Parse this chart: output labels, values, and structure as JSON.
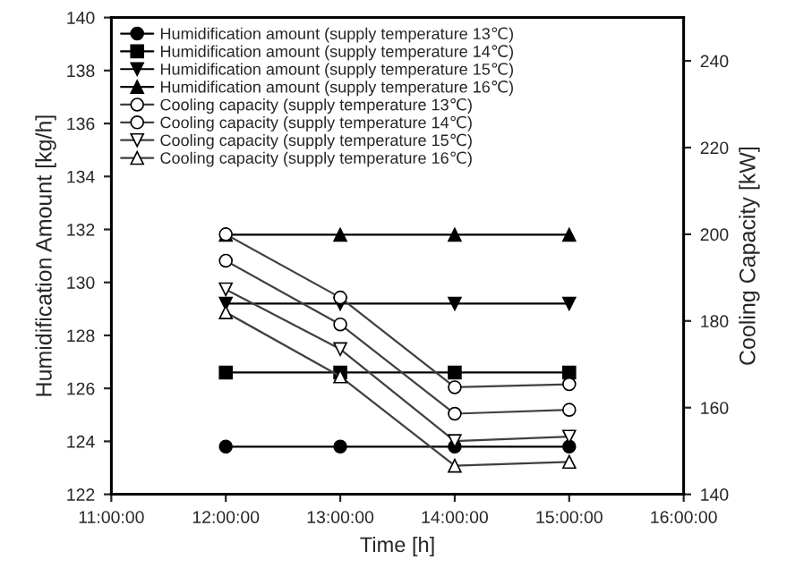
{
  "chart_data": {
    "type": "line",
    "xlabel": "Time [h]",
    "ylabel": "Humidification Amount [kg/h]",
    "y2label": "Cooling Capacity [kW]",
    "x": [
      12,
      13,
      14,
      15
    ],
    "xlim": [
      11,
      16
    ],
    "xticks": [
      {
        "value": 11,
        "label": "11:00:00"
      },
      {
        "value": 12,
        "label": "12:00:00"
      },
      {
        "value": 13,
        "label": "13:00:00"
      },
      {
        "value": 14,
        "label": "14:00:00"
      },
      {
        "value": 15,
        "label": "15:00:00"
      },
      {
        "value": 16,
        "label": "16:00:00"
      }
    ],
    "ylim": [
      122,
      140
    ],
    "yticks": [
      122,
      124,
      126,
      128,
      130,
      132,
      134,
      136,
      138,
      140
    ],
    "y2lim": [
      140,
      250
    ],
    "y2ticks": [
      140,
      160,
      180,
      200,
      220,
      240
    ],
    "grid": false,
    "legend": "top left",
    "line_style": "solid",
    "series": [
      {
        "name": "Humidification amount (supply temperature 13℃)",
        "color": "#000000",
        "marker": "circle",
        "values": [
          123.8,
          123.8,
          123.8,
          123.8
        ]
      },
      {
        "name": "Humidification amount (supply temperature 14℃)",
        "color": "#000000",
        "marker": "square",
        "values": [
          126.6,
          126.6,
          126.6,
          126.6
        ]
      },
      {
        "name": "Humidification amount (supply temperature 15℃)",
        "color": "#000000",
        "marker": "triangle_down",
        "values": [
          129.2,
          129.2,
          129.2,
          129.2
        ]
      },
      {
        "name": "Humidification amount (supply temperature 16℃)",
        "color": "#000000",
        "marker": "triangle",
        "values": [
          131.8,
          131.8,
          131.8,
          131.8
        ]
      },
      {
        "name": "Cooling capacity (supply temperature 13℃)",
        "color": "#404040",
        "marker": "circle",
        "axis": "y2",
        "values": [
          200,
          185.4,
          164.7,
          165.4
        ]
      },
      {
        "name": "Cooling capacity (supply temperature 14℃)",
        "color": "#404040",
        "marker": "circle",
        "axis": "y2",
        "values": [
          193.9,
          179.2,
          158.6,
          159.5
        ]
      },
      {
        "name": "Cooling capacity (supply temperature 15℃)",
        "color": "#404040",
        "marker": "triangle_down",
        "axis": "y2",
        "values": [
          187.3,
          173.5,
          152.3,
          153.3
        ]
      },
      {
        "name": "Cooling capacity (supply temperature 16℃)",
        "color": "#404040",
        "marker": "triangle",
        "axis": "y2",
        "values": [
          182.0,
          167.2,
          146.6,
          147.5
        ]
      }
    ]
  }
}
